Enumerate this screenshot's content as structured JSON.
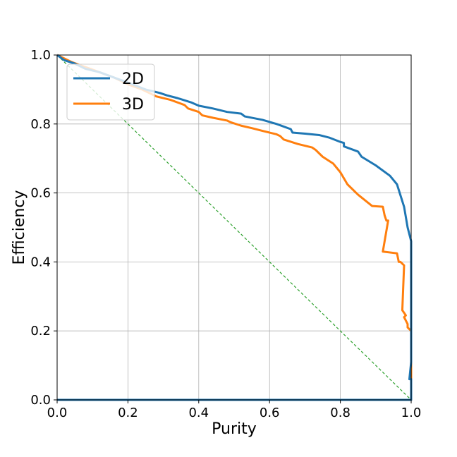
{
  "chart_data": {
    "type": "line",
    "xlabel": "Purity",
    "ylabel": "Efficiency",
    "xlim": [
      0.0,
      1.0
    ],
    "ylim": [
      0.0,
      1.0
    ],
    "xticks": [
      "0.0",
      "0.2",
      "0.4",
      "0.6",
      "0.8",
      "1.0"
    ],
    "yticks": [
      "0.0",
      "0.2",
      "0.4",
      "0.6",
      "0.8",
      "1.0"
    ],
    "grid": true,
    "legend_position": "top-left",
    "series": [
      {
        "name": "2D",
        "color": "#1f77b4",
        "x": [
          0.0,
          0.02,
          0.05,
          0.08,
          0.12,
          0.16,
          0.2,
          0.25,
          0.29,
          0.31,
          0.34,
          0.38,
          0.4,
          0.44,
          0.48,
          0.52,
          0.53,
          0.58,
          0.62,
          0.66,
          0.665,
          0.7,
          0.74,
          0.77,
          0.8,
          0.81,
          0.81,
          0.85,
          0.86,
          0.9,
          0.94,
          0.96,
          0.98,
          0.99,
          1.0,
          1.0,
          0.995,
          1.0,
          1.0,
          0.0
        ],
        "y": [
          1.0,
          0.985,
          0.975,
          0.96,
          0.95,
          0.935,
          0.92,
          0.9,
          0.89,
          0.883,
          0.875,
          0.862,
          0.853,
          0.845,
          0.835,
          0.83,
          0.822,
          0.812,
          0.8,
          0.785,
          0.775,
          0.772,
          0.768,
          0.76,
          0.748,
          0.745,
          0.735,
          0.72,
          0.705,
          0.68,
          0.65,
          0.625,
          0.56,
          0.5,
          0.46,
          0.11,
          0.06,
          0.06,
          0.0,
          0.0
        ]
      },
      {
        "name": "3D",
        "color": "#ff7f0e",
        "x": [
          0.0,
          0.04,
          0.08,
          0.12,
          0.16,
          0.2,
          0.24,
          0.28,
          0.32,
          0.36,
          0.37,
          0.4,
          0.41,
          0.44,
          0.48,
          0.49,
          0.52,
          0.55,
          0.58,
          0.62,
          0.63,
          0.64,
          0.68,
          0.72,
          0.73,
          0.74,
          0.75,
          0.78,
          0.8,
          0.82,
          0.85,
          0.89,
          0.92,
          0.925,
          0.93,
          0.935,
          0.92,
          0.96,
          0.965,
          0.97,
          0.98,
          0.975,
          0.985,
          0.98,
          0.99,
          0.99,
          1.0,
          1.0,
          0.0
        ],
        "y": [
          1.0,
          0.98,
          0.965,
          0.95,
          0.935,
          0.915,
          0.9,
          0.88,
          0.87,
          0.855,
          0.845,
          0.835,
          0.825,
          0.818,
          0.81,
          0.805,
          0.795,
          0.788,
          0.78,
          0.77,
          0.765,
          0.755,
          0.742,
          0.732,
          0.725,
          0.715,
          0.705,
          0.685,
          0.66,
          0.625,
          0.595,
          0.562,
          0.56,
          0.535,
          0.52,
          0.52,
          0.43,
          0.425,
          0.4,
          0.4,
          0.39,
          0.26,
          0.245,
          0.24,
          0.22,
          0.21,
          0.2,
          0.0,
          0.0
        ]
      },
      {
        "name": "",
        "color": "#2ca02c",
        "dashed": true,
        "x": [
          0.0,
          1.0
        ],
        "y": [
          1.0,
          0.0
        ]
      }
    ]
  }
}
